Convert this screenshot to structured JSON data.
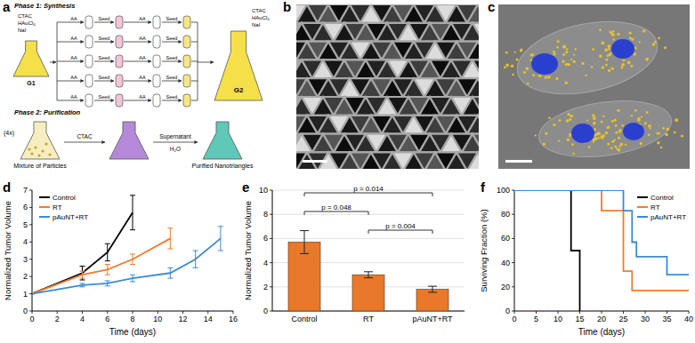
{
  "figure": {
    "a": {
      "label": "a",
      "phase1": "Phase 1: Synthesis",
      "reagents": [
        "CTAC",
        "HAuCl₄",
        "NaI"
      ],
      "flask1": "G1",
      "flask2": "G2",
      "step_add": "AA",
      "step_seed": "Seed",
      "phase2": "Phase 2: Purification",
      "repeat": "(4x)",
      "wash": "CTAC",
      "supernatant": "Supernatant",
      "water": "H₂O",
      "mixture": "Mixture of Particles",
      "purified": "Purified Nanotriangles"
    },
    "b": {
      "label": "b"
    },
    "c": {
      "label": "c"
    }
  },
  "chart_data": [
    {
      "type": "line",
      "title": "d",
      "x_label": "Time (days)",
      "y_label": "Normalized Tumor Volume",
      "xlim": [
        0,
        16
      ],
      "xticks": [
        0,
        2,
        4,
        6,
        8,
        10,
        12,
        14,
        16
      ],
      "ylim": [
        0,
        7
      ],
      "yticks": [
        0,
        1,
        2,
        3,
        4,
        5,
        6,
        7
      ],
      "legend": "upper left",
      "series": [
        {
          "name": "Control",
          "color": "#000000",
          "x": [
            0,
            4,
            6,
            8
          ],
          "values": [
            1,
            2.2,
            3.4,
            5.7
          ],
          "errors": [
            0,
            0.4,
            0.5,
            1.0
          ]
        },
        {
          "name": "RT",
          "color": "#f07c2e",
          "x": [
            0,
            4,
            6,
            8,
            11
          ],
          "values": [
            1,
            2.1,
            2.4,
            3.0,
            4.2
          ],
          "errors": [
            0,
            0.2,
            0.3,
            0.3,
            0.6
          ]
        },
        {
          "name": "pAuNT+RT",
          "color": "#3b8bd0",
          "x": [
            0,
            4,
            6,
            8,
            11,
            13,
            15
          ],
          "values": [
            1,
            1.5,
            1.6,
            1.9,
            2.2,
            3.0,
            4.2
          ],
          "errors": [
            0,
            0.1,
            0.15,
            0.2,
            0.3,
            0.5,
            0.7
          ]
        }
      ]
    },
    {
      "type": "bar",
      "title": "e",
      "y_label": "Normalized Tumor Volume",
      "categories": [
        "Control",
        "RT",
        "pAuNT+RT"
      ],
      "values": [
        5.7,
        3.0,
        1.8
      ],
      "errors": [
        0.95,
        0.25,
        0.25
      ],
      "color": "#e8792a",
      "ylim": [
        0,
        10
      ],
      "yticks": [
        0,
        2,
        4,
        6,
        8,
        10
      ],
      "grid": true,
      "annotations": [
        {
          "text": "p = 0.014",
          "between": [
            "Control",
            "pAuNT+RT"
          ]
        },
        {
          "text": "p = 0.048",
          "between": [
            "Control",
            "RT"
          ]
        },
        {
          "text": "p = 0.004",
          "between": [
            "RT",
            "pAuNT+RT"
          ]
        }
      ]
    },
    {
      "type": "line",
      "title": "f",
      "x_label": "Time (days)",
      "y_label": "Surviving Fraction (%)",
      "line_style": "step",
      "xlim": [
        0,
        40
      ],
      "xticks": [
        0,
        5,
        10,
        15,
        20,
        25,
        30,
        35,
        40
      ],
      "ylim": [
        0,
        100
      ],
      "yticks": [
        0,
        20,
        40,
        60,
        80,
        100
      ],
      "legend": "upper right",
      "series": [
        {
          "name": "Control",
          "color": "#000000",
          "x": [
            0,
            13,
            15
          ],
          "values": [
            100,
            50,
            0
          ]
        },
        {
          "name": "RT",
          "color": "#f07c2e",
          "x": [
            0,
            20,
            25,
            27,
            40
          ],
          "values": [
            100,
            83,
            33,
            17,
            17
          ]
        },
        {
          "name": "pAuNT+RT",
          "color": "#3b8bd0",
          "x": [
            0,
            25,
            27,
            28,
            35,
            40
          ],
          "values": [
            100,
            83,
            57,
            45,
            30,
            30
          ]
        }
      ]
    }
  ]
}
